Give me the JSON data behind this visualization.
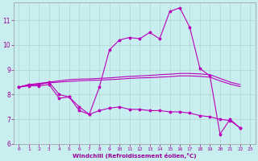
{
  "xlabel": "Windchill (Refroidissement éolien,°C)",
  "background_color": "#c8eef0",
  "grid_color": "#b0d8cc",
  "line_color": "#bb00bb",
  "xlim": [
    -0.5,
    23.5
  ],
  "ylim": [
    6.0,
    11.7
  ],
  "yticks": [
    6,
    7,
    8,
    9,
    10,
    11
  ],
  "xticks": [
    0,
    1,
    2,
    3,
    4,
    5,
    6,
    7,
    8,
    9,
    10,
    11,
    12,
    13,
    14,
    15,
    16,
    17,
    18,
    19,
    20,
    21,
    22,
    23
  ],
  "curve_upper_x": [
    0,
    1,
    2,
    3,
    4,
    5,
    6,
    7,
    8,
    9,
    10,
    11,
    12,
    13,
    14,
    15,
    16,
    17,
    18,
    19,
    20,
    21,
    22
  ],
  "curve_upper_y": [
    8.3,
    8.4,
    8.4,
    8.5,
    8.0,
    7.9,
    7.35,
    7.2,
    8.3,
    9.8,
    10.2,
    10.3,
    10.25,
    10.5,
    10.25,
    11.35,
    11.5,
    10.7,
    9.05,
    8.75,
    6.4,
    7.0,
    6.65
  ],
  "curve_lower_x": [
    0,
    1,
    2,
    3,
    4,
    5,
    6,
    7,
    8,
    9,
    10,
    11,
    12,
    13,
    14,
    15,
    16,
    17,
    18,
    19,
    20,
    21,
    22
  ],
  "curve_lower_y": [
    8.3,
    8.35,
    8.35,
    8.4,
    7.85,
    7.9,
    7.5,
    7.2,
    7.35,
    7.45,
    7.5,
    7.4,
    7.4,
    7.35,
    7.35,
    7.3,
    7.3,
    7.25,
    7.15,
    7.1,
    7.0,
    6.95,
    6.65
  ],
  "curve_mid1_x": [
    0,
    1,
    2,
    3,
    4,
    5,
    6,
    7,
    8,
    9,
    10,
    11,
    12,
    13,
    14,
    15,
    16,
    17,
    18,
    19,
    20,
    21,
    22
  ],
  "curve_mid1_y": [
    8.3,
    8.4,
    8.45,
    8.5,
    8.55,
    8.6,
    8.62,
    8.63,
    8.65,
    8.67,
    8.7,
    8.73,
    8.75,
    8.77,
    8.8,
    8.82,
    8.85,
    8.85,
    8.83,
    8.8,
    8.65,
    8.5,
    8.4
  ],
  "curve_mid2_x": [
    0,
    1,
    2,
    3,
    4,
    5,
    6,
    7,
    8,
    9,
    10,
    11,
    12,
    13,
    14,
    15,
    16,
    17,
    18,
    19,
    20,
    21,
    22
  ],
  "curve_mid2_y": [
    8.3,
    8.38,
    8.42,
    8.47,
    8.5,
    8.53,
    8.55,
    8.57,
    8.58,
    8.6,
    8.62,
    8.65,
    8.67,
    8.68,
    8.7,
    8.72,
    8.75,
    8.75,
    8.73,
    8.7,
    8.55,
    8.42,
    8.32
  ]
}
